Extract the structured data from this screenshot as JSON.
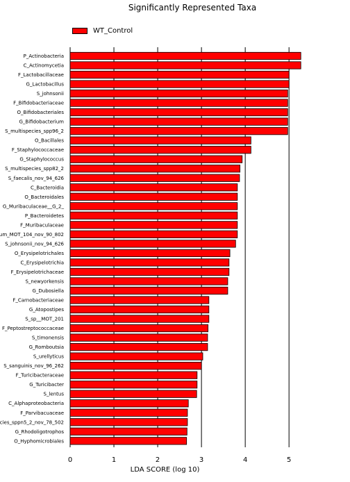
{
  "chart_data": {
    "type": "bar",
    "orientation": "horizontal",
    "title": "Significantly Represented Taxa",
    "xlabel": "LDA SCORE (log 10)",
    "ylabel": "",
    "xlim": [
      0,
      5.6
    ],
    "xticks": [
      "0",
      "1",
      "2",
      "3",
      "4",
      "5"
    ],
    "grid": true,
    "legend": "top-left",
    "series": [
      {
        "name": "WT_Control",
        "color": "#ff0000",
        "values": [
          5.27,
          5.27,
          5.0,
          5.0,
          4.97,
          4.97,
          4.97,
          4.97,
          4.97,
          4.13,
          4.13,
          3.93,
          3.88,
          3.87,
          3.82,
          3.82,
          3.82,
          3.82,
          3.82,
          3.82,
          3.78,
          3.65,
          3.63,
          3.63,
          3.6,
          3.6,
          3.17,
          3.17,
          3.17,
          3.15,
          3.14,
          3.14,
          3.03,
          3.0,
          2.9,
          2.9,
          2.89,
          2.7,
          2.68,
          2.68,
          2.67,
          2.66
        ]
      }
    ],
    "categories": [
      "P_Actinobacteria",
      "C_Actinomycetia",
      "F_Lactobacillaceae",
      "G_Lactobacillus",
      "S_johnsonii",
      "F_Bifidobacteriaceae",
      "O_Bifidobacteriales",
      "G_Bifidobacterium",
      "S_multispecies_spp96_2",
      "O_Bacillales",
      "F_Staphylococcaceae",
      "G_Staphylococcus",
      "S_multispecies_spp82_2",
      "S_faecalis_nov_94_626",
      "C_Bacteroidia",
      "O_Bacteroidales",
      "G_Muribaculaceae__G_2_",
      "P_Bacteroidetes",
      "F_Muribaculaceae",
      "um_MOT_104_nov_90_802",
      "S_johnsonii_nov_94_626",
      "O_Erysipelotrichales",
      "C_Erysipelotrichia",
      "F_Erysipelotrichaceae",
      "S_newyorkensis",
      "G_Dubosiella",
      "F_Carnobacteriaceae",
      "G_Atopostipes",
      "S_sp__MOT_201",
      "F_Peptostreptococcaceae",
      "S_timonensis",
      "G_Romboutsia",
      "S_urellyticus",
      "S_sanguinis_nov_96_262",
      "F_Turicibacteraceae",
      "G_Turicibacter",
      "S_lentus",
      "C_Alphaproteobacteria",
      "F_Parvibacuaceae",
      "cies_sppn5_2_nov_78_502",
      "G_Rhodoligotrophos",
      "O_Hyphomicrobiales"
    ]
  }
}
